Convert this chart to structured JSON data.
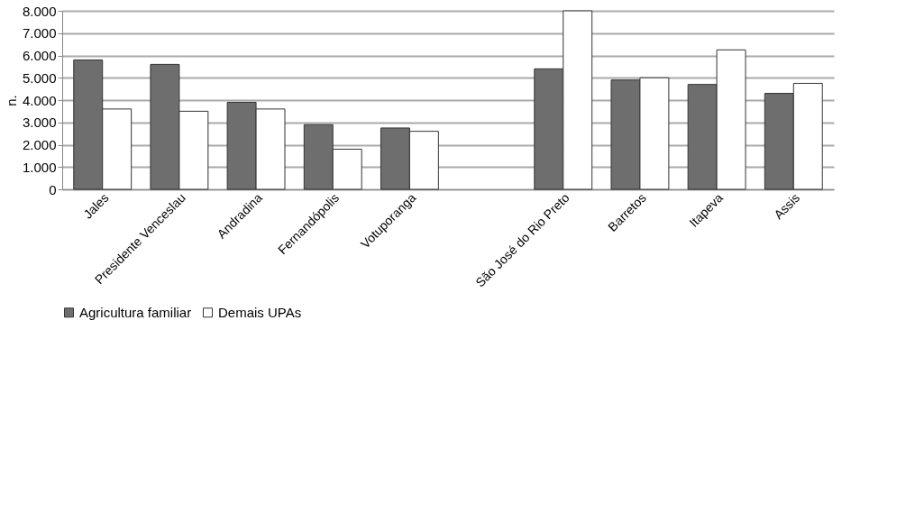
{
  "chart_data": {
    "type": "bar",
    "ylabel": "n.",
    "categories": [
      "Jales",
      "Presidente Venceslau",
      "Andradina",
      "Fernandópolis",
      "Votuporanga",
      null,
      "São José do Rio Preto",
      "Barretos",
      "Itapeva",
      "Assis"
    ],
    "series": [
      {
        "name": "Agricultura familiar",
        "color": "#6e6e6e",
        "values": [
          5800,
          5600,
          3900,
          2900,
          2750,
          null,
          5400,
          4900,
          4700,
          4300
        ]
      },
      {
        "name": "Demais UPAs",
        "color": "#ffffff",
        "values": [
          3600,
          3500,
          3600,
          1800,
          2600,
          null,
          8000,
          5000,
          6250,
          4750
        ]
      }
    ],
    "ylim": [
      0,
      8000
    ],
    "yticks": [
      {
        "value": 0,
        "label": "0"
      },
      {
        "value": 1000,
        "label": "1.000"
      },
      {
        "value": 2000,
        "label": "2.000"
      },
      {
        "value": 3000,
        "label": "3.000"
      },
      {
        "value": 4000,
        "label": "4.000"
      },
      {
        "value": 5000,
        "label": "5.000"
      },
      {
        "value": 6000,
        "label": "6.000"
      },
      {
        "value": 7000,
        "label": "7.000"
      },
      {
        "value": 8000,
        "label": "8.000"
      }
    ],
    "grid": "y",
    "legend": "bottom"
  }
}
